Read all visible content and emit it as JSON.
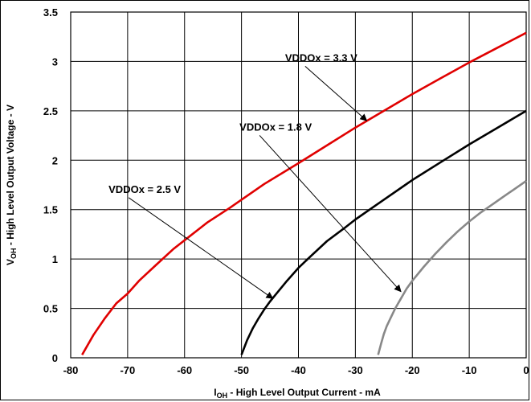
{
  "chart_data": {
    "type": "line",
    "title": "",
    "xlabel_main": "I",
    "xlabel_sub": "OH",
    "xlabel_rest": " - High Level Output Current - mA",
    "ylabel_main": "V",
    "ylabel_sub": "OH",
    "ylabel_rest": " - High Level Output Voltage - V",
    "xlim": [
      -80,
      0
    ],
    "ylim": [
      0,
      3.5
    ],
    "x_ticks": [
      -80,
      -70,
      -60,
      -50,
      -40,
      -30,
      -20,
      -10,
      0
    ],
    "x_tick_labels": [
      "-80",
      "-70",
      "-60",
      "-50",
      "-40",
      "-30",
      "-20",
      "-10",
      "0"
    ],
    "y_ticks": [
      0,
      0.5,
      1,
      1.5,
      2,
      2.5,
      3,
      3.5
    ],
    "y_tick_labels": [
      "0",
      "0.5",
      "1",
      "1.5",
      "2",
      "2.5",
      "3",
      "3.5"
    ],
    "grid": true,
    "series": [
      {
        "color": "#e00000",
        "x": [
          -78,
          -76,
          -74,
          -72,
          -70,
          -68,
          -65,
          -62,
          -60,
          -56,
          -52,
          -50,
          -46,
          -42,
          -40,
          -35,
          -30,
          -25,
          -20,
          -15,
          -10,
          -5,
          0
        ],
        "y": [
          0.03,
          0.23,
          0.4,
          0.55,
          0.65,
          0.78,
          0.94,
          1.1,
          1.19,
          1.37,
          1.52,
          1.6,
          1.76,
          1.9,
          1.97,
          2.15,
          2.33,
          2.5,
          2.67,
          2.83,
          2.99,
          3.14,
          3.29
        ]
      },
      {
        "color": "#000000",
        "x": [
          -50,
          -49,
          -48,
          -47,
          -46,
          -45,
          -44,
          -42,
          -40,
          -38,
          -35,
          -32,
          -30,
          -25,
          -20,
          -15,
          -10,
          -5,
          0
        ],
        "y": [
          0.03,
          0.18,
          0.3,
          0.4,
          0.49,
          0.57,
          0.64,
          0.78,
          0.91,
          1.02,
          1.18,
          1.31,
          1.4,
          1.6,
          1.8,
          1.98,
          2.16,
          2.33,
          2.5
        ]
      },
      {
        "color": "#888888",
        "x": [
          -26,
          -25.5,
          -25,
          -24.5,
          -24,
          -23,
          -22,
          -21,
          -20,
          -18,
          -16,
          -14,
          -12,
          -10,
          -8,
          -6,
          -4,
          -2,
          0
        ],
        "y": [
          0.03,
          0.14,
          0.24,
          0.32,
          0.38,
          0.5,
          0.6,
          0.7,
          0.78,
          0.92,
          1.05,
          1.17,
          1.28,
          1.38,
          1.47,
          1.55,
          1.63,
          1.71,
          1.79
        ]
      }
    ],
    "annotations": [
      {
        "text": "VDDOx = 3.3 V",
        "text_x": -36,
        "text_y": 3.0,
        "arrow_x": -28,
        "arrow_y": 2.4
      },
      {
        "text": "VDDOx = 1.8 V",
        "text_x": -44,
        "text_y": 2.3,
        "arrow_x": -22,
        "arrow_y": 0.67
      },
      {
        "text": "VDDOx = 2.5 V",
        "text_x": -67,
        "text_y": 1.67,
        "arrow_x": -44.5,
        "arrow_y": 0.6
      }
    ]
  }
}
